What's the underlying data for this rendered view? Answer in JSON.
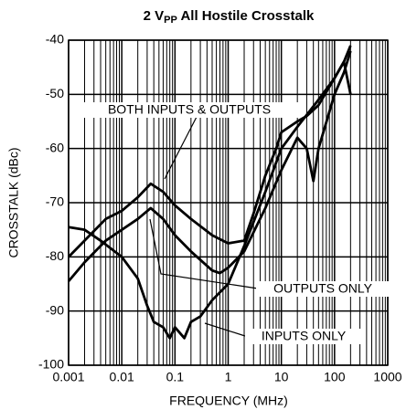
{
  "chart_data": {
    "type": "line",
    "title_parts": [
      "2 V",
      "PP",
      " All Hostile Crosstalk"
    ],
    "x_label": "FREQUENCY (MHz)",
    "y_label": "CROSSTALK (dBc)",
    "xscale": "log",
    "grid": true,
    "xlim": [
      0.001,
      1000
    ],
    "xticks": [
      0.001,
      0.01,
      0.1,
      1,
      10,
      100,
      1000
    ],
    "ylim": [
      -100,
      -40
    ],
    "yticks": [
      -100,
      -90,
      -80,
      -70,
      -60,
      -50,
      -40
    ],
    "series": [
      {
        "name": "BOTH INPUTS & OUTPUTS",
        "color": "#000000",
        "x": [
          0.001,
          0.002,
          0.005,
          0.01,
          0.02,
          0.035,
          0.06,
          0.1,
          0.2,
          0.5,
          1,
          2,
          3,
          5,
          8,
          10,
          20,
          30,
          50,
          100,
          150,
          200
        ],
        "values": [
          -80,
          -77,
          -73,
          -71.5,
          -69,
          -66.5,
          -68,
          -70.5,
          -73,
          -76,
          -77.5,
          -77,
          -72,
          -65,
          -60,
          -57,
          -55,
          -54,
          -52,
          -47,
          -44,
          -41
        ]
      },
      {
        "name": "OUTPUTS ONLY",
        "color": "#000000",
        "x": [
          0.001,
          0.002,
          0.005,
          0.01,
          0.02,
          0.035,
          0.06,
          0.1,
          0.2,
          0.5,
          0.7,
          1,
          2,
          5,
          10,
          20,
          30,
          40,
          50,
          100,
          150,
          200
        ],
        "values": [
          -84.5,
          -81,
          -77,
          -75,
          -73,
          -71,
          -73,
          -76,
          -79,
          -82.5,
          -83,
          -82,
          -79,
          -71,
          -64,
          -58,
          -60,
          -66,
          -60,
          -50,
          -46,
          -42
        ]
      },
      {
        "name": "INPUTS ONLY",
        "color": "#000000",
        "x": [
          0.001,
          0.002,
          0.004,
          0.01,
          0.02,
          0.03,
          0.04,
          0.06,
          0.08,
          0.1,
          0.15,
          0.2,
          0.3,
          0.5,
          1,
          2,
          5,
          10,
          20,
          50,
          100,
          150,
          200
        ],
        "values": [
          -74.5,
          -75,
          -77,
          -80,
          -84,
          -89,
          -92,
          -93,
          -95,
          -93,
          -95,
          -92,
          -91,
          -88,
          -85,
          -78,
          -68,
          -60,
          -56,
          -51,
          -47,
          -44,
          -50
        ]
      }
    ]
  }
}
